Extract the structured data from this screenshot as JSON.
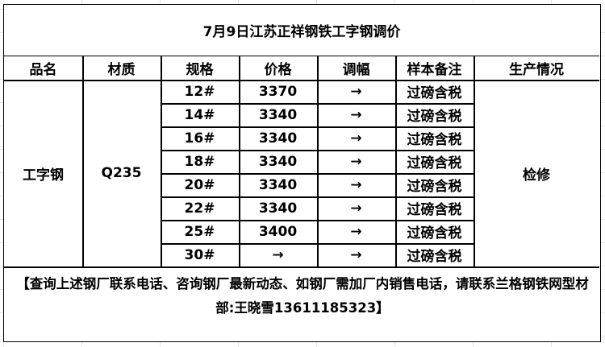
{
  "title": "7月9日江苏正祥钢铁工字钢调价",
  "headers": [
    "品名",
    "材质",
    "规格",
    "价格",
    "调幅",
    "样本备注",
    "生产情况"
  ],
  "product": "工字钢",
  "material": "Q235",
  "status": "检修",
  "rows": [
    {
      "spec": "12#",
      "price": "3370",
      "change": "→",
      "note": "过磅含税"
    },
    {
      "spec": "14#",
      "price": "3340",
      "change": "→",
      "note": "过磅含税"
    },
    {
      "spec": "16#",
      "price": "3340",
      "change": "→",
      "note": "过磅含税"
    },
    {
      "spec": "18#",
      "price": "3340",
      "change": "→",
      "note": "过磅含税"
    },
    {
      "spec": "20#",
      "price": "3340",
      "change": "→",
      "note": "过磅含税"
    },
    {
      "spec": "22#",
      "price": "3340",
      "change": "→",
      "note": "过磅含税"
    },
    {
      "spec": "25#",
      "price": "3400",
      "change": "→",
      "note": "过磅含税"
    },
    {
      "spec": "30#",
      "price": "→",
      "change": "→",
      "note": "过磅含税"
    }
  ],
  "footer": "【查询上述钢厂联系电话、咨询钢厂最新动态、如钢厂需加厂内销售电话，请联系兰格钢铁网型材部:王晓雪13611185323】"
}
